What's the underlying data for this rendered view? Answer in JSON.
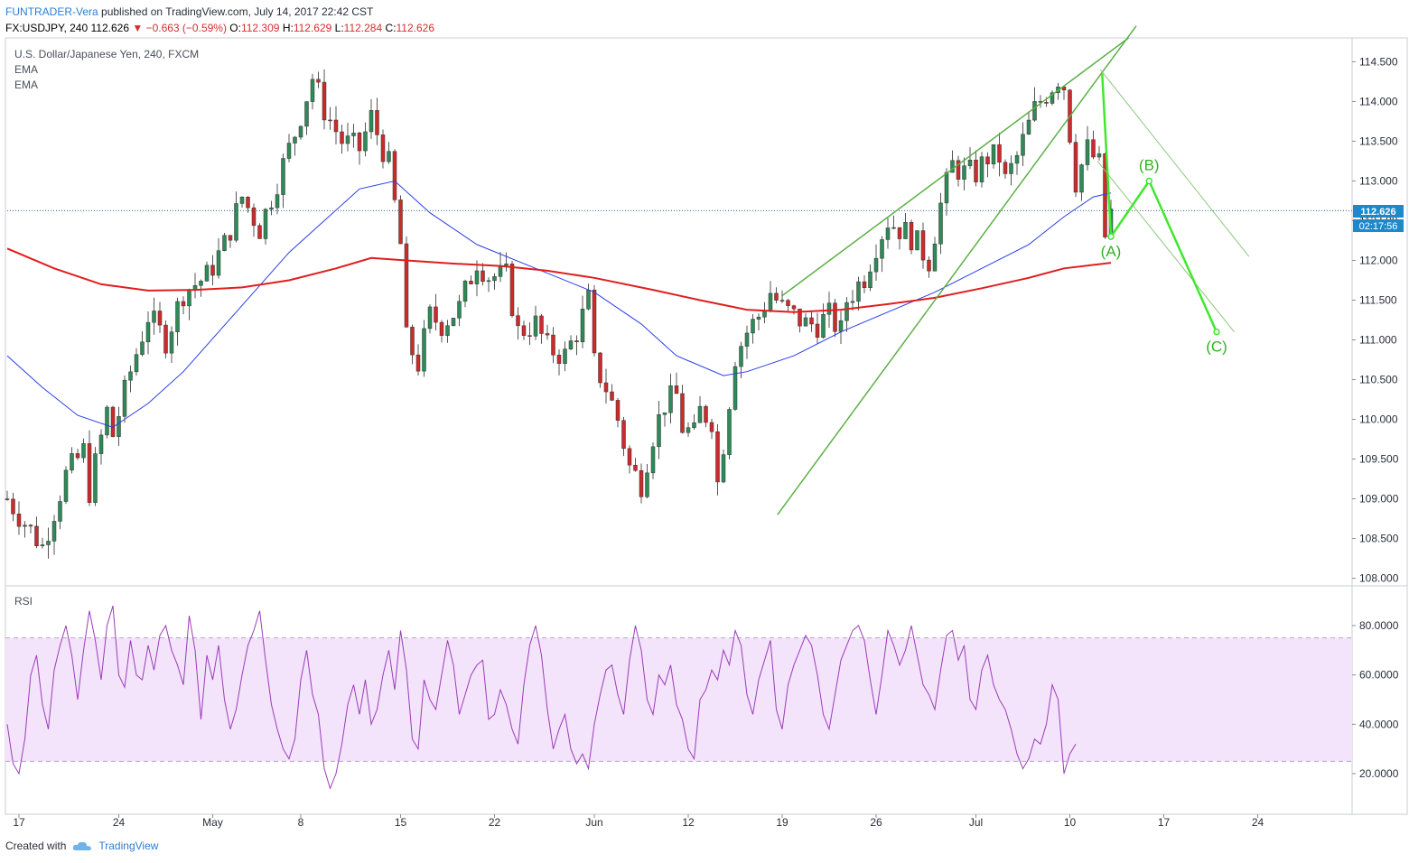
{
  "header": {
    "author": "FUNTRADER-Vera",
    "published": " published on TradingView.com, July 14, 2017 22:42 CST",
    "symbol_line": "FX:USDJPY, 240",
    "last": "112.626",
    "change": "▼ −0.663 (−0.59%)",
    "o_label": "O:",
    "o": "112.309",
    "h_label": "H:",
    "h": "112.629",
    "l_label": "L:",
    "l": "112.284",
    "c_label": "C:",
    "c": "112.626"
  },
  "pane_legend": {
    "title": "U.S. Dollar/Japanese Yen, 240, FXCM",
    "ind1": "EMA",
    "ind2": "EMA",
    "rsi": "RSI"
  },
  "price_badge": {
    "price": "112.626",
    "countdown": "02:17:56"
  },
  "footer": {
    "created_with": "Created with",
    "brand": "TradingView"
  },
  "colors": {
    "up": "#2e8b57",
    "down": "#cc2b2b",
    "ema_fast": "#2a3ce8",
    "ema_slow": "#e01e1e",
    "trend": "#5caf46",
    "wave": "#3ee82c",
    "rsi": "#9b3cb8",
    "rsi_band": "#f3e4fb"
  },
  "chart_data": {
    "type": "candlestick",
    "symbol": "USDJPY",
    "timeframe": "240",
    "x_ticks": [
      "17",
      "24",
      "May",
      "8",
      "15",
      "22",
      "Jun",
      "12",
      "19",
      "26",
      "Jul",
      "10",
      "17",
      "24"
    ],
    "y_ticks": [
      "108.000",
      "108.500",
      "109.000",
      "109.500",
      "110.000",
      "110.500",
      "111.000",
      "111.500",
      "112.000",
      "112.500",
      "113.000",
      "113.500",
      "114.000",
      "114.500"
    ],
    "ylim": [
      107.95,
      114.8
    ],
    "rsi_ticks": [
      "20.0000",
      "40.0000",
      "60.0000",
      "80.0000"
    ],
    "rsi_ylim": [
      5,
      95
    ],
    "rsi_bands": [
      25,
      75
    ],
    "last_price": 112.626,
    "close_path": [
      [
        0,
        109.0
      ],
      [
        6,
        108.4
      ],
      [
        10,
        109.3
      ],
      [
        13,
        109.6
      ],
      [
        14,
        109.1
      ],
      [
        17,
        110.1
      ],
      [
        18,
        109.8
      ],
      [
        21,
        110.6
      ],
      [
        24,
        111.3
      ],
      [
        27,
        111.0
      ],
      [
        30,
        111.6
      ],
      [
        34,
        111.8
      ],
      [
        37,
        112.2
      ],
      [
        40,
        112.8
      ],
      [
        43,
        112.4
      ],
      [
        46,
        113.0
      ],
      [
        49,
        113.6
      ],
      [
        52,
        114.3
      ],
      [
        54,
        113.9
      ],
      [
        57,
        113.5
      ],
      [
        60,
        113.4
      ],
      [
        62,
        113.8
      ],
      [
        65,
        113.2
      ],
      [
        67,
        112.2
      ],
      [
        68,
        111.0
      ],
      [
        70,
        110.7
      ],
      [
        72,
        111.3
      ],
      [
        74,
        111.2
      ],
      [
        77,
        111.4
      ],
      [
        80,
        112.0
      ],
      [
        82,
        111.8
      ],
      [
        85,
        111.8
      ],
      [
        87,
        111.1
      ],
      [
        90,
        111.2
      ],
      [
        92,
        110.9
      ],
      [
        95,
        110.8
      ],
      [
        97,
        111.1
      ],
      [
        99,
        111.5
      ],
      [
        100,
        110.7
      ],
      [
        102,
        110.4
      ],
      [
        104,
        110.0
      ],
      [
        106,
        109.4
      ],
      [
        108,
        109.2
      ],
      [
        110,
        109.8
      ],
      [
        112,
        110.2
      ],
      [
        114,
        110.3
      ],
      [
        115,
        109.9
      ],
      [
        117,
        109.8
      ],
      [
        118,
        110.1
      ],
      [
        120,
        110.0
      ],
      [
        121,
        109.2
      ],
      [
        122,
        109.7
      ],
      [
        124,
        110.8
      ],
      [
        126,
        111.1
      ],
      [
        128,
        111.3
      ],
      [
        130,
        111.6
      ],
      [
        132,
        111.4
      ],
      [
        134,
        111.3
      ],
      [
        136,
        111.2
      ],
      [
        138,
        111.2
      ],
      [
        140,
        111.3
      ],
      [
        142,
        111.1
      ],
      [
        143,
        111.5
      ],
      [
        146,
        111.8
      ],
      [
        148,
        112.2
      ],
      [
        150,
        112.5
      ],
      [
        152,
        112.4
      ],
      [
        154,
        112.3
      ],
      [
        156,
        112.1
      ],
      [
        157,
        112.0
      ],
      [
        159,
        112.7
      ],
      [
        161,
        113.2
      ],
      [
        163,
        113.1
      ],
      [
        165,
        113.1
      ],
      [
        167,
        113.3
      ],
      [
        169,
        113.3
      ],
      [
        170,
        113.0
      ],
      [
        172,
        113.3
      ],
      [
        174,
        113.7
      ],
      [
        175,
        113.9
      ],
      [
        177,
        114.1
      ],
      [
        179,
        114.3
      ],
      [
        180,
        114.2
      ],
      [
        181,
        113.6
      ],
      [
        182,
        113.0
      ],
      [
        184,
        113.4
      ],
      [
        186,
        113.2
      ],
      [
        187,
        112.3
      ],
      [
        188,
        112.6
      ]
    ],
    "ema_fast_path": [
      [
        0,
        110.8
      ],
      [
        6,
        110.4
      ],
      [
        12,
        110.05
      ],
      [
        18,
        109.9
      ],
      [
        24,
        110.2
      ],
      [
        30,
        110.6
      ],
      [
        36,
        111.1
      ],
      [
        42,
        111.6
      ],
      [
        48,
        112.1
      ],
      [
        54,
        112.5
      ],
      [
        60,
        112.9
      ],
      [
        66,
        113.0
      ],
      [
        72,
        112.6
      ],
      [
        80,
        112.2
      ],
      [
        90,
        111.9
      ],
      [
        100,
        111.6
      ],
      [
        108,
        111.2
      ],
      [
        114,
        110.8
      ],
      [
        122,
        110.55
      ],
      [
        126,
        110.6
      ],
      [
        134,
        110.8
      ],
      [
        142,
        111.1
      ],
      [
        150,
        111.35
      ],
      [
        158,
        111.6
      ],
      [
        166,
        111.9
      ],
      [
        174,
        112.2
      ],
      [
        180,
        112.55
      ],
      [
        185,
        112.8
      ],
      [
        188,
        112.85
      ]
    ],
    "ema_slow_path": [
      [
        0,
        112.15
      ],
      [
        8,
        111.9
      ],
      [
        16,
        111.7
      ],
      [
        24,
        111.62
      ],
      [
        32,
        111.63
      ],
      [
        40,
        111.66
      ],
      [
        48,
        111.75
      ],
      [
        56,
        111.9
      ],
      [
        62,
        112.03
      ],
      [
        68,
        112.0
      ],
      [
        76,
        111.96
      ],
      [
        84,
        111.93
      ],
      [
        92,
        111.87
      ],
      [
        100,
        111.78
      ],
      [
        110,
        111.63
      ],
      [
        118,
        111.5
      ],
      [
        126,
        111.38
      ],
      [
        134,
        111.35
      ],
      [
        142,
        111.38
      ],
      [
        150,
        111.45
      ],
      [
        158,
        111.53
      ],
      [
        166,
        111.65
      ],
      [
        174,
        111.78
      ],
      [
        180,
        111.9
      ],
      [
        188,
        111.97
      ]
    ],
    "rsi_values": [
      40,
      24,
      20,
      34,
      60,
      68,
      48,
      38,
      62,
      72,
      80,
      68,
      50,
      70,
      86,
      74,
      58,
      80,
      88,
      60,
      55,
      74,
      60,
      58,
      72,
      62,
      76,
      80,
      70,
      64,
      56,
      84,
      70,
      42,
      68,
      58,
      72,
      50,
      38,
      46,
      60,
      72,
      78,
      86,
      66,
      48,
      38,
      30,
      26,
      34,
      58,
      70,
      52,
      44,
      22,
      14,
      20,
      32,
      48,
      56,
      44,
      58,
      40,
      46,
      60,
      70,
      54,
      78,
      62,
      34,
      30,
      58,
      50,
      46,
      60,
      74,
      64,
      44,
      52,
      60,
      64,
      66,
      42,
      44,
      54,
      48,
      38,
      32,
      56,
      72,
      80,
      68,
      46,
      30,
      38,
      44,
      30,
      24,
      28,
      22,
      40,
      52,
      62,
      64,
      52,
      44,
      66,
      80,
      70,
      50,
      44,
      60,
      56,
      64,
      48,
      42,
      30,
      26,
      50,
      54,
      62,
      58,
      70,
      64,
      78,
      72,
      52,
      44,
      58,
      66,
      74,
      46,
      38,
      56,
      64,
      70,
      76,
      72,
      60,
      44,
      38,
      52,
      66,
      72,
      78,
      80,
      74,
      58,
      44,
      60,
      78,
      72,
      64,
      70,
      80,
      68,
      56,
      52,
      46,
      62,
      76,
      78,
      66,
      72,
      50,
      46,
      62,
      68,
      56,
      50,
      46,
      38,
      28,
      22,
      26,
      34,
      32,
      40,
      56,
      50,
      20,
      28,
      32
    ],
    "trend_lines": [
      {
        "from": [
          150,
          108.8
        ],
        "to": [
          196,
          114.95
        ]
      },
      {
        "from": [
          150,
          108.8
        ],
        "to": [
          196,
          114.95
        ]
      }
    ],
    "waves": [
      {
        "label": "(A)",
        "x": 188.0,
        "y": 112.3
      },
      {
        "label": "(B)",
        "x": 194.5,
        "y": 113.0
      },
      {
        "label": "(C)",
        "x": 206.0,
        "y": 111.1
      }
    ]
  }
}
